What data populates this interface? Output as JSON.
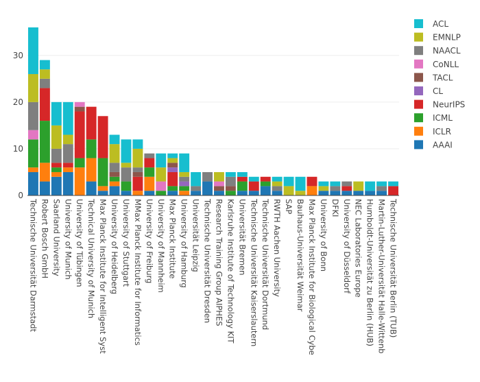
{
  "chart_data": {
    "type": "bar",
    "stacked": true,
    "categories": [
      "Technische Universität Darmstadt",
      "Robert Bosch GmbH",
      "Saarland University",
      "University of Munich",
      "University of Tübingen",
      "Technical University of Munich",
      "Max Planck Institute for Intelligent Syst",
      "University of Heidelberg",
      "University of Stuttgart",
      "MMax Planck Institute for Informatics",
      "University of Freiburg",
      "University of Mannheim",
      "Max Planck Institute",
      "University of Hamburg",
      "Universität Leipzig",
      "Technische Universität Dresden",
      "Research Training Group AIPHES",
      "Karlsruhe Institute of Technology KIT",
      "Universität Bremen",
      "Technische Universität Kaiserslautern",
      "Technische Universität Dortmund",
      "RWTH Aachen University",
      "SAP",
      "Bauhaus-Universität Weimar",
      "Max Planck Institute for Biological Cybe",
      "University of Bonn",
      "DFKI",
      "University of Düsseldorf",
      "NEC Laboratories Europe",
      "Humboldt-Universität zu Berlin (HUB)",
      "Martin-Luther-Universität Halle-Wittenb",
      "Technische Universität Berlin (TUB)"
    ],
    "series": [
      {
        "name": "AAAI",
        "color": "#1f77b4",
        "values": [
          5,
          3,
          4,
          5,
          0,
          3,
          1,
          2,
          1,
          0,
          1,
          0,
          1,
          0,
          1,
          3,
          1,
          0,
          1,
          1,
          2,
          1,
          0,
          0,
          0,
          1,
          1,
          1,
          1,
          1,
          1,
          0
        ]
      },
      {
        "name": "ICLR",
        "color": "#ff7f0e",
        "values": [
          1,
          4,
          1,
          1,
          6,
          5,
          1,
          1,
          0,
          1,
          3,
          0,
          0,
          1,
          0,
          0,
          0,
          0,
          0,
          0,
          0,
          0,
          0,
          0,
          2,
          0,
          0,
          0,
          0,
          0,
          0,
          0
        ]
      },
      {
        "name": "ICML",
        "color": "#2ca02c",
        "values": [
          6,
          9,
          1,
          0,
          2,
          4,
          6,
          1,
          2,
          0,
          2,
          1,
          1,
          1,
          0,
          0,
          0,
          1,
          2,
          0,
          1,
          0,
          0,
          0,
          0,
          0,
          0,
          0,
          0,
          0,
          0,
          0
        ]
      },
      {
        "name": "NeurIPS",
        "color": "#d62728",
        "values": [
          0,
          7,
          1,
          1,
          10,
          7,
          9,
          0,
          0,
          3,
          2,
          0,
          3,
          0,
          0,
          0,
          0,
          0,
          1,
          2,
          1,
          0,
          0,
          0,
          2,
          0,
          0,
          1,
          0,
          0,
          0,
          2
        ]
      },
      {
        "name": "CL",
        "color": "#9467bd",
        "values": [
          0,
          0,
          0,
          0,
          0,
          0,
          0,
          0,
          0,
          0,
          0,
          0,
          1,
          1,
          0,
          0,
          0,
          0,
          0,
          0,
          0,
          0,
          0,
          0,
          0,
          0,
          0,
          0,
          0,
          0,
          0,
          0
        ]
      },
      {
        "name": "TACL",
        "color": "#8c564b",
        "values": [
          0,
          0,
          0,
          0,
          1,
          0,
          0,
          1,
          0,
          1,
          0,
          0,
          1,
          0,
          0,
          0,
          1,
          1,
          0,
          0,
          0,
          0,
          0,
          0,
          0,
          0,
          0,
          0,
          0,
          0,
          0,
          0
        ]
      },
      {
        "name": "CoNLL",
        "color": "#e377c2",
        "values": [
          2,
          0,
          0,
          0,
          1,
          0,
          0,
          0,
          0,
          0,
          0,
          2,
          0,
          0,
          0,
          0,
          1,
          0,
          0,
          0,
          0,
          0,
          0,
          0,
          0,
          0,
          0,
          0,
          0,
          0,
          0,
          0
        ]
      },
      {
        "name": "NAACL",
        "color": "#7f7f7f",
        "values": [
          6,
          2,
          3,
          4,
          0,
          0,
          0,
          2,
          3,
          1,
          1,
          0,
          0,
          1,
          1,
          2,
          0,
          2,
          0,
          0,
          0,
          1,
          0,
          0,
          0,
          0,
          1,
          1,
          0,
          0,
          1,
          0
        ]
      },
      {
        "name": "EMNLP",
        "color": "#bcbd22",
        "values": [
          6,
          2,
          5,
          2,
          0,
          0,
          0,
          4,
          1,
          4,
          0,
          3,
          1,
          1,
          0,
          0,
          2,
          0,
          0,
          0,
          0,
          1,
          2,
          1,
          0,
          1,
          0,
          0,
          2,
          0,
          0,
          0
        ]
      },
      {
        "name": "ACL",
        "color": "#17becf",
        "values": [
          10,
          2,
          5,
          7,
          0,
          0,
          0,
          2,
          5,
          2,
          0,
          3,
          1,
          4,
          3,
          0,
          0,
          1,
          1,
          1,
          0,
          1,
          2,
          3,
          0,
          1,
          1,
          0,
          0,
          2,
          1,
          1
        ]
      }
    ],
    "yticks": [
      0,
      10,
      20,
      30
    ],
    "ylim": [
      0,
      37.9
    ],
    "legend_order": [
      "ACL",
      "EMNLP",
      "NAACL",
      "CoNLL",
      "TACL",
      "CL",
      "NeurIPS",
      "ICML",
      "ICLR",
      "AAAI"
    ],
    "legend_position": "right",
    "grid": true
  }
}
